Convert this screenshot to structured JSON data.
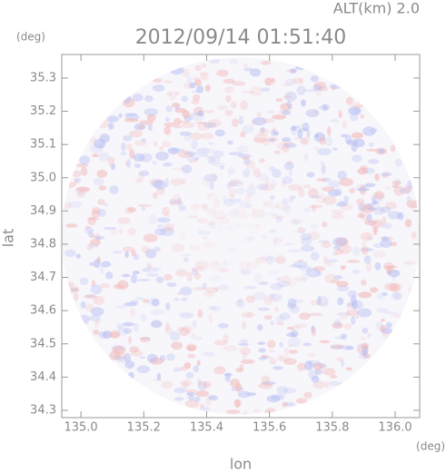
{
  "chart_data": {
    "type": "radar",
    "title": "2012/09/14 01:51:40",
    "annotation": "ALT(km) 2.0",
    "x_label": "lon",
    "y_label": "lat",
    "x_unit": "(deg)",
    "y_unit": "(deg)",
    "xlim": [
      134.939,
      136.078
    ],
    "ylim": [
      34.278,
      35.371
    ],
    "xticks": [
      {
        "value": 135,
        "label": "135.0"
      },
      135.2,
      135.4,
      135.6,
      135.8,
      {
        "value": 136,
        "label": "136.0"
      }
    ],
    "yticks": [
      34.3,
      34.4,
      34.5,
      34.6,
      34.7,
      34.8,
      34.9,
      {
        "value": 35,
        "label": "35.0"
      },
      35.1,
      35.2,
      35.3
    ]
  }
}
